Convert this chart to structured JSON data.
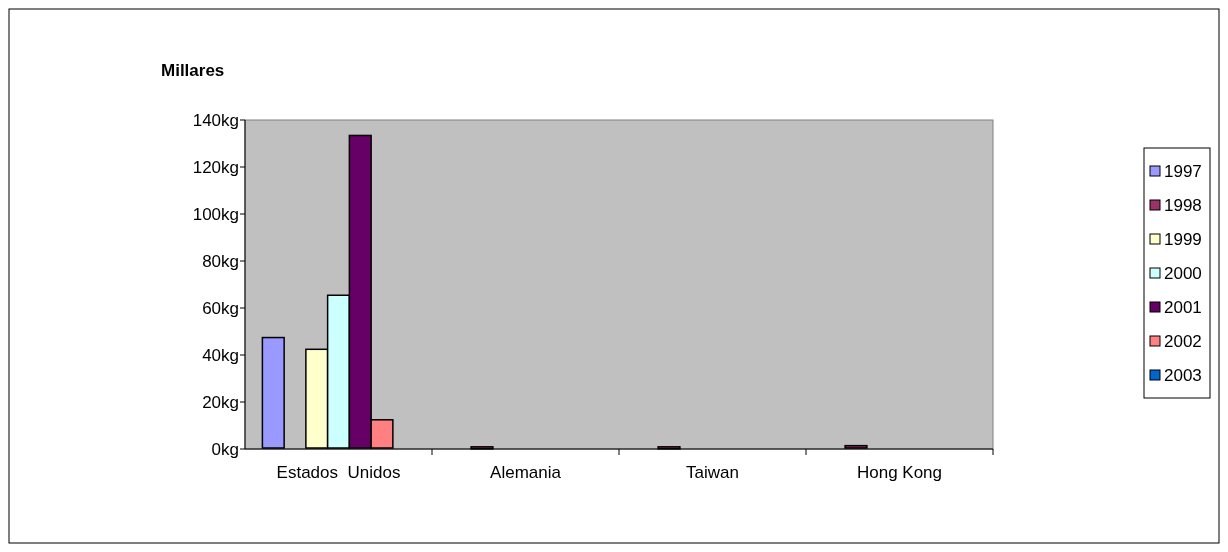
{
  "chart_data": {
    "type": "bar",
    "ylabel": "Millares",
    "categories": [
      "Estados  Unidos",
      "Alemania",
      "Taiwan",
      "Hong Kong"
    ],
    "series": [
      {
        "name": "1997",
        "color": "#9999ff",
        "values": [
          47,
          null,
          null,
          null
        ]
      },
      {
        "name": "1998",
        "color": "#993366",
        "values": [
          null,
          0.5,
          0.5,
          1
        ]
      },
      {
        "name": "1999",
        "color": "#ffffcc",
        "values": [
          42,
          null,
          null,
          null
        ]
      },
      {
        "name": "2000",
        "color": "#ccffff",
        "values": [
          65,
          null,
          null,
          null
        ]
      },
      {
        "name": "2001",
        "color": "#660066",
        "values": [
          133,
          null,
          null,
          null
        ]
      },
      {
        "name": "2002",
        "color": "#ff8080",
        "values": [
          12,
          null,
          null,
          null
        ]
      },
      {
        "name": "2003",
        "color": "#0066cc",
        "values": [
          null,
          null,
          null,
          null
        ]
      }
    ],
    "ylim": [
      0,
      140
    ],
    "yticks": [
      {
        "value": 0,
        "label": "0kg"
      },
      {
        "value": 20,
        "label": "20kg"
      },
      {
        "value": 40,
        "label": "40kg"
      },
      {
        "value": 60,
        "label": "60kg"
      },
      {
        "value": 80,
        "label": "80kg"
      },
      {
        "value": 100,
        "label": "100kg"
      },
      {
        "value": 120,
        "label": "120kg"
      },
      {
        "value": 140,
        "label": "140kg"
      }
    ],
    "grid": false,
    "legend": "right"
  }
}
